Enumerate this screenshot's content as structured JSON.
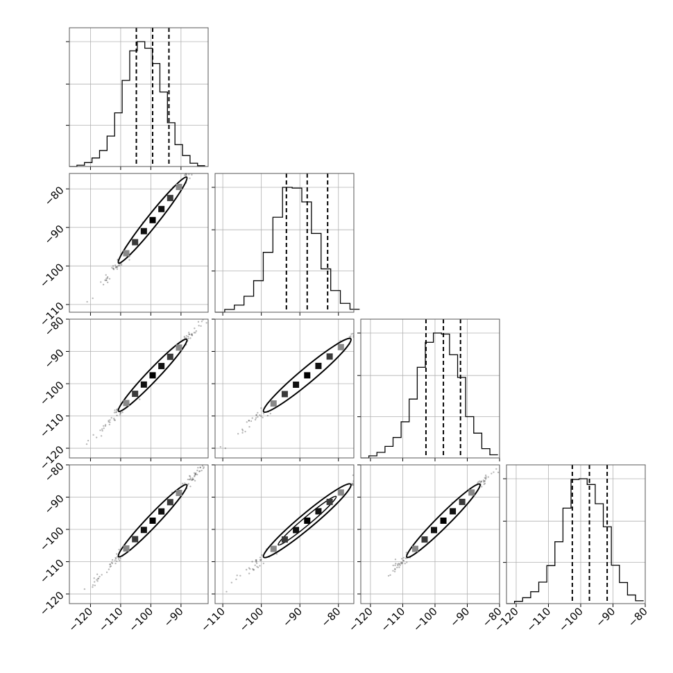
{
  "chart_data": {
    "type": "scatter",
    "description_kind": "corner",
    "parameters": 4,
    "grid": true,
    "axis_ranges": [
      [
        -127,
        -81
      ],
      [
        -112,
        -76
      ],
      [
        -123,
        -80
      ],
      [
        -123,
        -80
      ]
    ],
    "bottom_tick_values": [
      [
        -120,
        -110,
        -100,
        -90
      ],
      [
        -110,
        -100,
        -90,
        -80
      ],
      [
        -120,
        -110,
        -100,
        -90,
        -80
      ],
      [
        -120,
        -110,
        -100,
        -90,
        -80
      ]
    ],
    "left_tick_values": [
      null,
      [
        -80,
        -90,
        -100,
        -110
      ],
      [
        -80,
        -90,
        -100,
        -110,
        -120
      ],
      [
        -80,
        -90,
        -100,
        -110,
        -120
      ]
    ],
    "histograms": [
      {
        "bin_edges": [
          -127,
          -124.5,
          -122,
          -119.5,
          -117,
          -114.5,
          -112,
          -109.5,
          -107,
          -104.5,
          -102,
          -99.5,
          -97,
          -94.5,
          -92,
          -89.5,
          -87,
          -84.5,
          -82
        ],
        "counts": [
          0.0,
          0.6,
          1.8,
          3.9,
          7.3,
          13.9,
          24.5,
          39.3,
          52.8,
          57.0,
          54.0,
          47.0,
          34.0,
          20.0,
          10.0,
          5.0,
          1.5,
          0.4
        ]
      },
      {
        "bin_edges": [
          -112,
          -109.5,
          -107,
          -104.5,
          -102,
          -99.5,
          -97,
          -94.5,
          -92,
          -89.5,
          -87,
          -84.5,
          -82,
          -79.5,
          -77,
          -74.5
        ],
        "counts": [
          0.0,
          1.4,
          3.6,
          8.1,
          16.0,
          30.4,
          48.2,
          63.4,
          63.0,
          56.0,
          40.0,
          22.0,
          11.0,
          4.5,
          1.5
        ]
      },
      {
        "bin_edges": [
          -123,
          -120.5,
          -118,
          -115.5,
          -113,
          -110.5,
          -108,
          -105.5,
          -103,
          -100.5,
          -98,
          -95.5,
          -93,
          -90.5,
          -88,
          -85.5,
          -83,
          -80.5
        ],
        "counts": [
          0.0,
          1.0,
          2.7,
          5.6,
          9.9,
          17.5,
          28.5,
          43.9,
          56.0,
          60.5,
          60.0,
          50.0,
          39.0,
          20.0,
          12.0,
          4.5,
          1.5
        ]
      },
      {
        "bin_edges": [
          -123,
          -120.5,
          -118,
          -115.5,
          -113,
          -110.5,
          -108,
          -105.5,
          -103,
          -100.5,
          -98,
          -95.5,
          -93,
          -90.5,
          -88,
          -85.5,
          -83,
          -80.5
        ],
        "counts": [
          0.0,
          1.2,
          3.1,
          6.2,
          11.2,
          19.8,
          32.2,
          49.7,
          64.6,
          65.0,
          62.0,
          52.0,
          40.0,
          20.0,
          11.0,
          4.5,
          1.5
        ]
      }
    ],
    "quantiles": [
      [
        -104.8,
        -99.4,
        -94.0
      ],
      [
        -93.5,
        -88.1,
        -82.8
      ],
      [
        -102.8,
        -97.4,
        -92.1
      ],
      [
        -102.6,
        -97.3,
        -91.8
      ]
    ],
    "contours": [
      {
        "row": 1,
        "col": 0,
        "center": [
          -99.4,
          -88.1
        ],
        "slope": 0.985,
        "half_length": 11.3,
        "half_width": 1.9
      },
      {
        "row": 2,
        "col": 0,
        "center": [
          -99.4,
          -97.4
        ],
        "slope": 0.985,
        "half_length": 11.3,
        "half_width": 1.9
      },
      {
        "row": 2,
        "col": 1,
        "center": [
          -88.1,
          -97.4
        ],
        "slope": 1.0,
        "half_length": 11.3,
        "half_width": 1.9
      },
      {
        "row": 3,
        "col": 0,
        "center": [
          -99.4,
          -97.3
        ],
        "slope": 0.985,
        "half_length": 11.3,
        "half_width": 1.9
      },
      {
        "row": 3,
        "col": 1,
        "center": [
          -88.1,
          -97.3
        ],
        "slope": 1.0,
        "half_length": 11.3,
        "half_width": 1.9,
        "inner_half_length": 7.5,
        "inner_half_width": 1.0
      },
      {
        "row": 3,
        "col": 2,
        "center": [
          -97.4,
          -97.3
        ],
        "slope": 1.0,
        "half_length": 11.3,
        "half_width": 1.9
      }
    ]
  }
}
